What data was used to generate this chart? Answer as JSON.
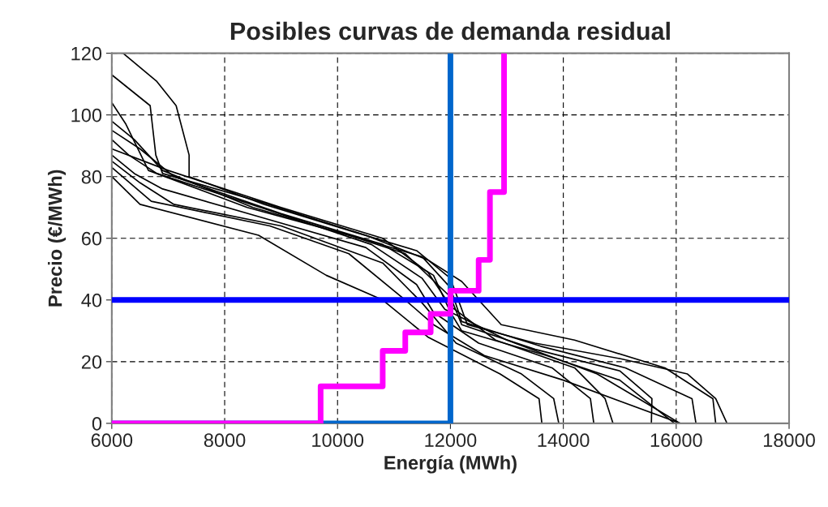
{
  "chart_data": {
    "type": "line",
    "title": "Posibles curvas de demanda residual",
    "xlabel": "Energía (MWh)",
    "ylabel": "Precio (€/MWh)",
    "xlim": [
      6000,
      18000
    ],
    "xticks": [
      6000,
      8000,
      10000,
      12000,
      14000,
      16000,
      18000
    ],
    "ylim": [
      0,
      120
    ],
    "yticks": [
      0,
      20,
      40,
      60,
      80,
      100,
      120
    ],
    "grid": true,
    "line_style": "solid",
    "marker": "none",
    "ref_lines": [
      {
        "axis": "y",
        "value": 40,
        "label": null,
        "color": "#0000ff"
      }
    ],
    "series": [
      {
        "color": "#000000",
        "x": [
          6200,
          6790,
          7140,
          7370,
          7370,
          8700,
          10300,
          11400,
          12000,
          12300,
          13500,
          15000,
          16200,
          16700,
          16900
        ],
        "values": [
          120,
          111,
          103,
          87,
          80,
          71,
          62,
          56,
          47,
          32,
          26,
          21,
          16,
          8,
          0
        ]
      },
      {
        "color": "#000000",
        "x": [
          6000,
          6680,
          6780,
          6900,
          8600,
          10500,
          11600,
          12200,
          12900,
          14200,
          15800,
          16650,
          16700
        ],
        "values": [
          113,
          103,
          87,
          81,
          72,
          61,
          53,
          46,
          32,
          27,
          18,
          8,
          0
        ]
      },
      {
        "color": "#000000",
        "x": [
          6000,
          6250,
          6650,
          8400,
          10400,
          11500,
          12000,
          12200,
          13600,
          15100,
          16280,
          16350
        ],
        "values": [
          104,
          97,
          82,
          70,
          60,
          54,
          44,
          33,
          25,
          18,
          8,
          0
        ]
      },
      {
        "color": "#000000",
        "x": [
          6000,
          6400,
          6900,
          8500,
          10200,
          11200,
          12000,
          12200,
          13500,
          15000,
          15570,
          15560
        ],
        "values": [
          98,
          92,
          82,
          70,
          61,
          55,
          41,
          32,
          24,
          17,
          8,
          0
        ]
      },
      {
        "color": "#000000",
        "x": [
          6000,
          6500,
          7100,
          9000,
          10800,
          11700,
          12000,
          12200,
          13700,
          15000,
          15970
        ],
        "values": [
          95,
          89,
          80,
          68,
          58,
          48,
          36,
          30,
          22,
          14,
          0
        ]
      },
      {
        "color": "#000000",
        "x": [
          6000,
          6300,
          6800,
          8800,
          10600,
          11500,
          11900,
          13000,
          14600,
          16070
        ],
        "values": [
          92,
          87,
          81,
          69,
          58,
          47,
          37,
          27,
          16,
          0
        ]
      },
      {
        "color": "#000000",
        "x": [
          6000,
          7000,
          9000,
          10800,
          11600,
          12000,
          12800,
          14200,
          14740,
          14880
        ],
        "values": [
          89,
          82,
          70,
          60,
          49,
          38,
          27,
          18,
          8,
          0
        ]
      },
      {
        "color": "#000000",
        "x": [
          6000,
          6400,
          6900,
          8800,
          10500,
          11400,
          11700,
          12500,
          13800,
          14480,
          14540
        ],
        "values": [
          87,
          81,
          76,
          66,
          57,
          45,
          36,
          26,
          18,
          8,
          0
        ]
      },
      {
        "color": "#000000",
        "x": [
          6000,
          6500,
          7100,
          9000,
          10800,
          11500,
          12100,
          13260,
          13830,
          13920
        ],
        "values": [
          85,
          78,
          71,
          64,
          52,
          39,
          26,
          16,
          8,
          0
        ]
      },
      {
        "color": "#000000",
        "x": [
          6000,
          6500,
          8600,
          9800,
          10800,
          11600,
          12880,
          13570,
          13620
        ],
        "values": [
          80,
          71,
          61,
          48,
          40,
          28,
          16,
          8,
          0
        ]
      },
      {
        "color": "#000000",
        "x": [
          6000,
          6700,
          8800,
          10200,
          11200,
          11700,
          12600,
          14000,
          16070
        ],
        "values": [
          83,
          72,
          64,
          55,
          40,
          32,
          22,
          14,
          0
        ]
      },
      {
        "color": "#0066cc",
        "x": [
          6000,
          12000,
          12000
        ],
        "values": [
          0,
          0,
          120
        ]
      },
      {
        "color": "#ff00ff",
        "x": [
          6000,
          9700,
          9700,
          10800,
          10800,
          11200,
          11200,
          11650,
          11650,
          12000,
          12000,
          12500,
          12500,
          12700,
          12700,
          12950,
          12950
        ],
        "values": [
          0,
          0,
          12,
          12,
          23.5,
          23.5,
          29.5,
          29.5,
          35.5,
          35.5,
          43,
          43,
          53,
          53,
          75,
          75,
          120
        ]
      }
    ]
  }
}
